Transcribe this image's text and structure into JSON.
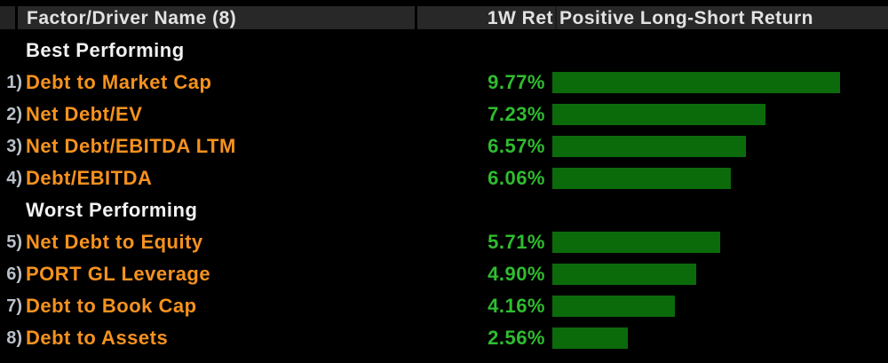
{
  "header": {
    "factor_col": "Factor/Driver Name (8)",
    "ret_col": "1W Ret",
    "bar_col": "Positive Long-Short Return"
  },
  "sections": {
    "best": "Best Performing",
    "worst": "Worst Performing"
  },
  "rows": [
    {
      "num": "1)",
      "name": "Debt to Market Cap",
      "ret": "9.77%",
      "value": 9.77
    },
    {
      "num": "2)",
      "name": "Net Debt/EV",
      "ret": "7.23%",
      "value": 7.23
    },
    {
      "num": "3)",
      "name": "Net Debt/EBITDA LTM",
      "ret": "6.57%",
      "value": 6.57
    },
    {
      "num": "4)",
      "name": "Debt/EBITDA",
      "ret": "6.06%",
      "value": 6.06
    },
    {
      "num": "5)",
      "name": "Net Debt to Equity",
      "ret": "5.71%",
      "value": 5.71
    },
    {
      "num": "6)",
      "name": "PORT GL Leverage",
      "ret": "4.90%",
      "value": 4.9
    },
    {
      "num": "7)",
      "name": "Debt to Book Cap",
      "ret": "4.16%",
      "value": 4.16
    },
    {
      "num": "8)",
      "name": "Debt to Assets",
      "ret": "2.56%",
      "value": 2.56
    }
  ],
  "colors": {
    "background": "#000000",
    "header_bg": "#282828",
    "header_text": "#e2e2e2",
    "section_text": "#f2f2f2",
    "row_number": "#b9c1c9",
    "factor_name": "#f6921e",
    "return_value": "#2fbd2f",
    "bar_fill": "#0b6b0b"
  },
  "chart_data": {
    "type": "bar",
    "orientation": "horizontal",
    "title": "Positive Long-Short Return",
    "xlabel": "1W Ret",
    "categories": [
      "Debt to Market Cap",
      "Net Debt/EV",
      "Net Debt/EBITDA LTM",
      "Debt/EBITDA",
      "Net Debt to Equity",
      "PORT GL Leverage",
      "Debt to Book Cap",
      "Debt to Assets"
    ],
    "values": [
      9.77,
      7.23,
      6.57,
      6.06,
      5.71,
      4.9,
      4.16,
      2.56
    ],
    "value_labels": [
      "9.77%",
      "7.23%",
      "6.57%",
      "6.06%",
      "5.71%",
      "4.90%",
      "4.16%",
      "2.56%"
    ],
    "group_of_each": [
      "Best Performing",
      "Best Performing",
      "Best Performing",
      "Best Performing",
      "Worst Performing",
      "Worst Performing",
      "Worst Performing",
      "Worst Performing"
    ],
    "xlim": [
      0,
      11.4
    ],
    "grid": false,
    "legend": false,
    "bar_color": "#0b6b0b"
  }
}
